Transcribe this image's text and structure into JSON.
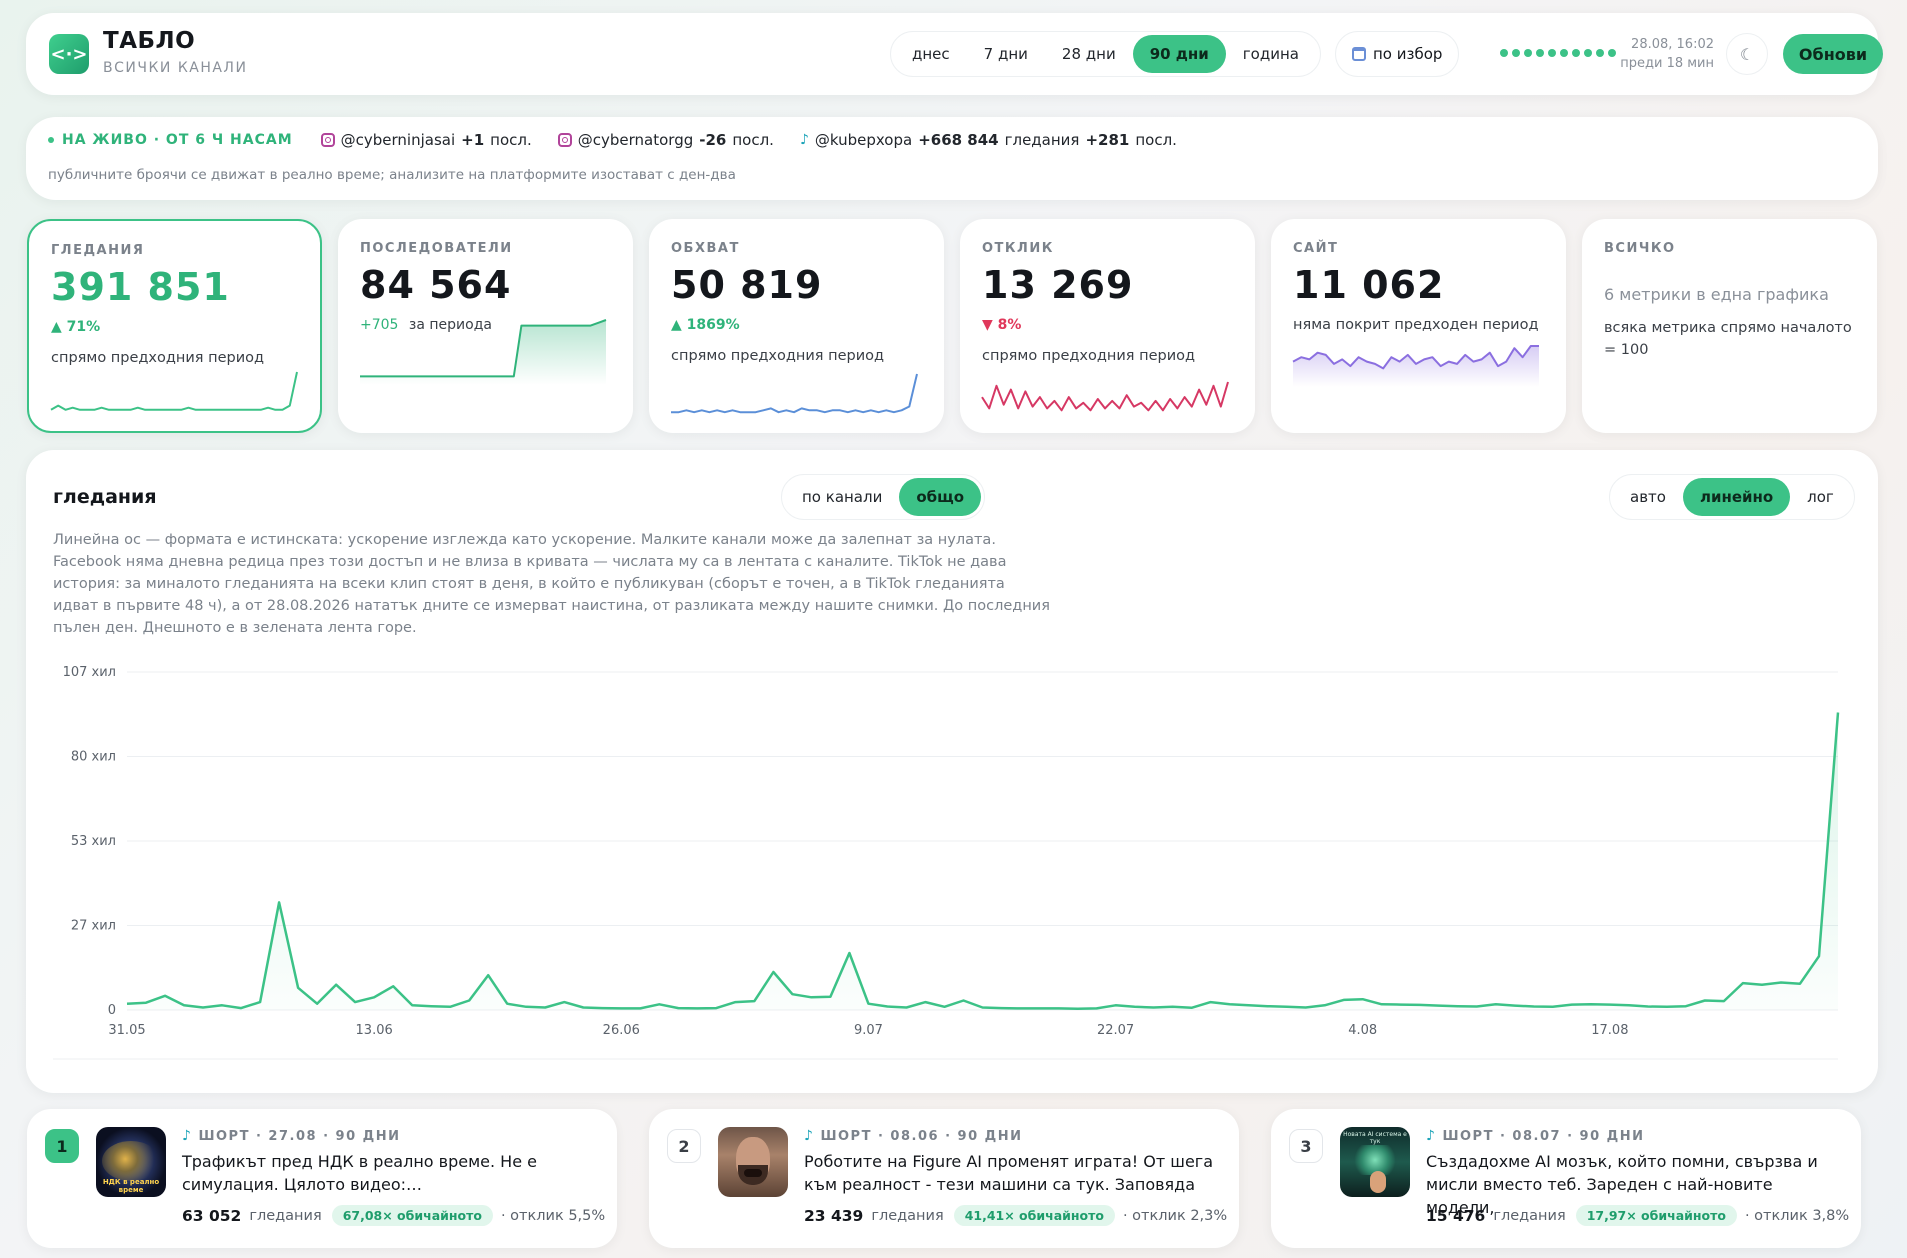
{
  "header": {
    "logo_glyph": "<·>",
    "title": "ТАБЛО",
    "subtitle": "ВСИЧКИ КАНАЛИ",
    "ranges": [
      {
        "label": "днес",
        "active": false
      },
      {
        "label": "7 дни",
        "active": false
      },
      {
        "label": "28 дни",
        "active": false
      },
      {
        "label": "90 дни",
        "active": true
      },
      {
        "label": "година",
        "active": false
      }
    ],
    "custom_label": "по избор",
    "updated_time": "28.08, 16:02",
    "updated_ago": "преди 18 мин",
    "theme_glyph": "☾",
    "refresh_label": "Обнови"
  },
  "live": {
    "tag": "НА ЖИВО · ОТ 6 Ч НАСАМ",
    "items": [
      {
        "platform": "instagram",
        "handle": "@cyberninjasai",
        "value": "+1",
        "unit": "посл."
      },
      {
        "platform": "instagram",
        "handle": "@cybernatorgg",
        "value": "-26",
        "unit": "посл."
      },
      {
        "platform": "tiktok",
        "handle": "@kubepxopa",
        "value": "+668 844",
        "unit": "гледания",
        "value2": "+281",
        "unit2": "посл."
      }
    ],
    "note": "публичните броячи се движат в реално време; анализите на платформите изостават с ден-два"
  },
  "kpis": [
    {
      "label": "ГЛЕДАНИЯ",
      "value": "391 851",
      "delta": "▲ 71%",
      "delta_dir": "up",
      "note": "спрямо предходния период",
      "color": "#3cc287",
      "selected": true,
      "spark_type": "line",
      "spark": [
        2,
        4,
        2,
        3,
        2,
        2,
        2,
        3,
        2,
        2,
        2,
        2,
        3,
        2,
        2,
        2,
        2,
        2,
        2,
        3,
        2,
        2,
        2,
        2,
        2,
        2,
        2,
        2,
        2,
        2,
        3,
        2,
        2,
        4,
        20
      ]
    },
    {
      "label": "ПОСЛЕДОВАТЕЛИ",
      "value": "84 564",
      "delta": "+705",
      "delta_dir": "up",
      "delta_suffix": "за периода",
      "note": "",
      "color": "#2fb37a",
      "selected": false,
      "spark_type": "area",
      "spark": [
        2,
        2,
        2,
        2,
        2,
        2,
        2,
        2,
        2,
        2,
        2,
        2,
        2,
        2,
        2,
        2,
        2,
        2,
        2,
        2,
        2,
        20,
        20,
        20,
        20,
        20,
        20,
        20,
        20,
        20,
        20,
        21,
        22
      ]
    },
    {
      "label": "ОБХВАТ",
      "value": "50 819",
      "delta": "▲ 1869%",
      "delta_dir": "up",
      "note": "спрямо предходния период",
      "color": "#5b8fd8",
      "selected": false,
      "spark_type": "line",
      "spark": [
        2,
        2,
        3,
        2,
        3,
        2,
        3,
        2,
        3,
        2,
        2,
        2,
        3,
        4,
        2,
        3,
        2,
        4,
        3,
        3,
        2,
        3,
        3,
        2,
        3,
        2,
        3,
        2,
        3,
        2,
        3,
        5,
        22
      ]
    },
    {
      "label": "ОТКЛИК",
      "value": "13 269",
      "delta": "▼ 8%",
      "delta_dir": "down",
      "note": "спрямо предходния период",
      "color": "#d63864",
      "selected": false,
      "spark_type": "line",
      "spark": [
        10,
        4,
        16,
        6,
        14,
        4,
        13,
        5,
        10,
        4,
        8,
        3,
        10,
        4,
        7,
        3,
        9,
        4,
        8,
        4,
        11,
        5,
        7,
        3,
        8,
        3,
        9,
        4,
        10,
        5,
        14,
        6,
        16,
        5,
        18
      ]
    },
    {
      "label": "САЙТ",
      "value": "11 062",
      "delta": "",
      "delta_dir": "none",
      "note": "няма покрит предходен период",
      "color": "#8b6fe0",
      "selected": false,
      "spark_type": "area",
      "spark": [
        10,
        12,
        11,
        14,
        13,
        9,
        11,
        8,
        12,
        10,
        9,
        7,
        12,
        10,
        13,
        9,
        11,
        12,
        8,
        10,
        9,
        13,
        10,
        11,
        14,
        8,
        10,
        16,
        12,
        17,
        17
      ]
    },
    {
      "label": "ВСИЧКО",
      "value": "",
      "delta": "",
      "delta_dir": "none",
      "note": "6 метрики в една графика",
      "note2": "всяка метрика спрямо началото = 100",
      "color": "#999",
      "selected": false,
      "spark_type": "none",
      "spark": []
    }
  ],
  "chart": {
    "title": "гледания",
    "modes": [
      {
        "label": "по канали",
        "active": false
      },
      {
        "label": "общо",
        "active": true
      }
    ],
    "scales": [
      {
        "label": "авто",
        "active": false
      },
      {
        "label": "линейно",
        "active": true
      },
      {
        "label": "лог",
        "active": false
      }
    ],
    "description": "Линейна ос — формата е истинската: ускорение изглежда като ускорение. Малките канали може да залепнат за нулата. Facebook няма дневна редица през този достъп и не влиза в кривата — числата му са в лентата с каналите. TikTok не дава история: за миналото гледанията на всеки клип стоят в деня, в който е публикуван (сборът е точен, а в TikTok гледанията идват в първите 48 ч), а от 28.08.2026 нататък дните се измерват наистина, от разликата между нашите снимки. До последния пълен ден. Днешното е в зелената лента горе."
  },
  "chart_data": {
    "type": "area",
    "title": "гледания",
    "y_tick_labels": [
      "0",
      "27 хил",
      "53 хил",
      "80 хил",
      "107 хил"
    ],
    "y_ticks": [
      0,
      26700,
      53400,
      80100,
      106800
    ],
    "ylim": [
      0,
      106800
    ],
    "x_tick_labels": [
      "31.05",
      "13.06",
      "26.06",
      "9.07",
      "22.07",
      "4.08",
      "17.08"
    ],
    "x_tick_index": [
      0,
      13,
      26,
      39,
      52,
      65,
      78
    ],
    "grid": true,
    "color": "#3cc287",
    "series": [
      {
        "values": [
          2000,
          2300,
          4500,
          1500,
          800,
          1500,
          600,
          2500,
          34000,
          7000,
          2000,
          8000,
          2500,
          4000,
          7500,
          1500,
          1200,
          1000,
          3000,
          11000,
          2000,
          1000,
          800,
          2500,
          800,
          600,
          500,
          500,
          1800,
          600,
          500,
          600,
          2500,
          2800,
          12000,
          5000,
          4000,
          4200,
          18000,
          2000,
          1100,
          800,
          2500,
          1000,
          3000,
          800,
          600,
          500,
          500,
          500,
          400,
          500,
          1500,
          1000,
          800,
          1000,
          700,
          2500,
          1800,
          1500,
          1200,
          1000,
          800,
          1500,
          3200,
          3400,
          1800,
          1700,
          1600,
          1400,
          1200,
          1100,
          1800,
          1400,
          1100,
          1000,
          1700,
          1800,
          1700,
          1500,
          1100,
          1000,
          1200,
          3000,
          2800,
          8500,
          8000,
          8700,
          8300,
          17000,
          94000
        ]
      }
    ]
  },
  "posts": [
    {
      "rank": "1",
      "meta": "ШОРТ · 27.08 · 90 ДНИ",
      "title": "Трафикът пред НДК в реално време. Не е симулация. Цялото видео:…",
      "views": "63 052",
      "views_label": "гледания",
      "badge": "67,08× обичайното",
      "engagement": "· отклик 5,5%",
      "thumb_caption": "НДК в реално време"
    },
    {
      "rank": "2",
      "meta": "ШОРТ · 08.06 · 90 ДНИ",
      "title": "Роботите на Figure AI променят играта! От шега към реалност - тези машини са тук. Заповяда",
      "views": "23 439",
      "views_label": "гледания",
      "badge": "41,41× обичайното",
      "engagement": "· отклик 2,3%",
      "thumb_caption": ""
    },
    {
      "rank": "3",
      "meta": "ШОРТ · 08.07 · 90 ДНИ",
      "title": "Създадохме AI мозък, който помни, свързва и мисли вместо теб. Зареден с най-новите модели,",
      "views": "15 476",
      "views_label": "гледания",
      "badge": "17,97× обичайното",
      "engagement": "· отклик 3,8%",
      "thumb_caption": "Новата AI система е тук"
    }
  ]
}
